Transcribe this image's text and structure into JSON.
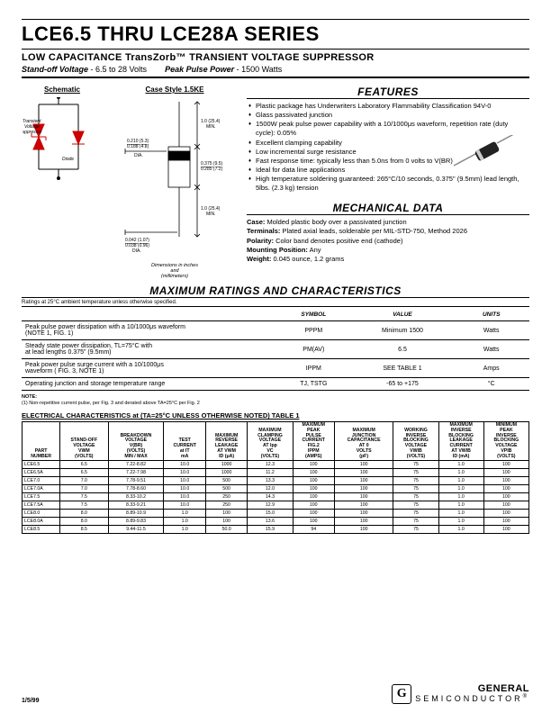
{
  "header": {
    "title": "LCE6.5 THRU LCE28A SERIES",
    "subtitle": "LOW CAPACITANCE TransZorb™ TRANSIENT VOLTAGE SUPPRESSOR",
    "spec_left_label": "Stand-off Voltage",
    "spec_left_val": " - 6.5 to 28 Volts",
    "spec_right_label": "Peak Pulse Power",
    "spec_right_val": " - 1500 Watts"
  },
  "schematic": {
    "header": "Schematic",
    "label_tvs": "Transient\nVoltage\nSuppressor",
    "label_diode": "Diode"
  },
  "case": {
    "header": "Case Style 1.5KE",
    "dim_top": "1.0 (25.4)\nMIN.",
    "dim_lead": "0.210 (5.3)\n0.188 (4.8)\nDIA.",
    "dim_body_h": "0.375 (9.5)\n0.285 (7.2)",
    "dim_bot": "1.0 (25.4)\nMIN.",
    "dim_wire": "0.042 (1.07)\n0.038 (0.96)\nDIA.",
    "note": "Dimensions in inches\nand\n(millimeters)"
  },
  "features": {
    "header": "FEATURES",
    "items": [
      "Plastic package has Underwriters Laboratory Flammability Classification 94V-0",
      "Glass passivated junction",
      "1500W peak pulse power capability with a 10/1000μs waveform, repetition rate (duty cycle): 0.05%",
      "Excellent clamping capability",
      "Low incremental surge resistance",
      "Fast response time: typically less than 5.0ns from 0 volts to V(BR)",
      "Ideal for data line applications",
      "High temperature soldering guaranteed: 265°C/10 seconds, 0.375\" (9.5mm) lead length, 5lbs. (2.3 kg) tension"
    ]
  },
  "mech": {
    "header": "MECHANICAL DATA",
    "rows": [
      {
        "k": "Case:",
        "v": " Molded plastic body over a passivated junction"
      },
      {
        "k": "Terminals:",
        "v": " Plated axial leads, solderable per MIL-STD-750, Method 2026"
      },
      {
        "k": "Polarity:",
        "v": " Color band denotes positive end (cathode)"
      },
      {
        "k": "Mounting Position:",
        "v": " Any"
      },
      {
        "k": "Weight:",
        "v": " 0.045 ounce, 1.2 grams"
      }
    ]
  },
  "max": {
    "header": "MAXIMUM RATINGS AND CHARACTERISTICS",
    "note": "Ratings at 25°C ambient temperature unless otherwise specified.",
    "cols": [
      "SYMBOL",
      "VALUE",
      "UNITS"
    ],
    "rows": [
      {
        "desc": "Peak pulse power dissipation with a 10/1000μs waveform\n(NOTE 1, FIG. 1)",
        "sym": "PPPM",
        "val": "Minimum 1500",
        "unit": "Watts"
      },
      {
        "desc": "Steady state power dissipation, TL=75°C with\nat lead lengths 0.375\" (9.5mm)",
        "sym": "PM(AV)",
        "val": "6.5",
        "unit": "Watts"
      },
      {
        "desc": "Peak power pulse surge current with a 10/1000μs\nwaveform ( FIG. 3, NOTE 1)",
        "sym": "IPPM",
        "val": "SEE TABLE 1",
        "unit": "Amps"
      },
      {
        "desc": "Operating junction and storage temperature range",
        "sym": "TJ, TSTG",
        "val": "-65 to +175",
        "unit": "°C"
      }
    ]
  },
  "notes": {
    "label": "NOTE:",
    "text": "(1) Non-repetitive current pulse, per Fig. 3 and derated above TA=25°C per Fig. 2"
  },
  "elec": {
    "title": "ELECTRICAL CHARACTERISTICS at (TA=25°C UNLESS OTHERWISE NOTED) TABLE 1",
    "headers": [
      "PART\nNUMBER",
      "STAND-OFF\nVOLTAGE\nVWM\n(VOLTS)",
      "BREAKDOWN\nVOLTAGE\nV(BR)\n(VOLTS)\nMIN / MAX",
      "TEST\nCURRENT\nat IT\nmA",
      "MAXIMUM\nREVERSE\nLEAKAGE\nAT VWM\nID (μA)",
      "MAXIMUM\nCLAMPING\nVOLTAGE\nAT Ipp\nVC\n(VOLTS)",
      "MAXIMUM\nPEAK\nPULSE\nCURRENT\nFIG.2\nIPPM\n(AMPS)",
      "MAXIMUM\nJUNCTION\nCAPACITANCE\nAT 0\nVOLTS\n(pF)",
      "WORKING\nINVERSE\nBLOCKING\nVOLTAGE\nVWIB\n(VOLTS)",
      "MAXIMUM\nINVERSE\nBLOCKING\nLEAKAGE\nCURRENT\nAT VWIB\nID (mA)",
      "MINIMUM\nPEAK\nINVERSE\nBLOCKING\nVOLTAGE\nVPIB\n(VOLTS)"
    ],
    "rows": [
      [
        "LCE6.5",
        "6.5",
        "7.22-8.82",
        "10.0",
        "1000",
        "12.3",
        "100",
        "100",
        "75",
        "1.0",
        "100"
      ],
      [
        "LCE6.5A",
        "6.5",
        "7.22-7.98",
        "10.0",
        "1000",
        "11.2",
        "100",
        "100",
        "75",
        "1.0",
        "100"
      ],
      [
        "LCE7.0",
        "7.0",
        "7.78-9.51",
        "10.0",
        "500",
        "13.3",
        "100",
        "100",
        "75",
        "1.0",
        "100"
      ],
      [
        "LCE7.0A",
        "7.0",
        "7.78-8.60",
        "10.0",
        "500",
        "12.0",
        "100",
        "100",
        "75",
        "1.0",
        "100"
      ],
      [
        "LCE7.5",
        "7.5",
        "8.33-10.2",
        "10.0",
        "250",
        "14.3",
        "100",
        "100",
        "75",
        "1.0",
        "100"
      ],
      [
        "LCE7.5A",
        "7.5",
        "8.33-9.21",
        "10.0",
        "250",
        "12.9",
        "100",
        "100",
        "75",
        "1.0",
        "100"
      ],
      [
        "LCE8.0",
        "8.0",
        "8.89-10.9",
        "1.0",
        "100",
        "15.0",
        "100",
        "100",
        "75",
        "1.0",
        "100"
      ],
      [
        "LCE8.0A",
        "8.0",
        "8.89-9.83",
        "1.0",
        "100",
        "13.6",
        "100",
        "100",
        "75",
        "1.0",
        "100"
      ],
      [
        "LCE8.5",
        "8.5",
        "9.44-11.5",
        "1.0",
        "50.0",
        "15.9",
        "94",
        "100",
        "75",
        "1.0",
        "100"
      ]
    ]
  },
  "footer": {
    "date": "1/5/99",
    "logo_top": "GENERAL",
    "logo_bot": "SEMICONDUCTOR",
    "reg": "®"
  }
}
